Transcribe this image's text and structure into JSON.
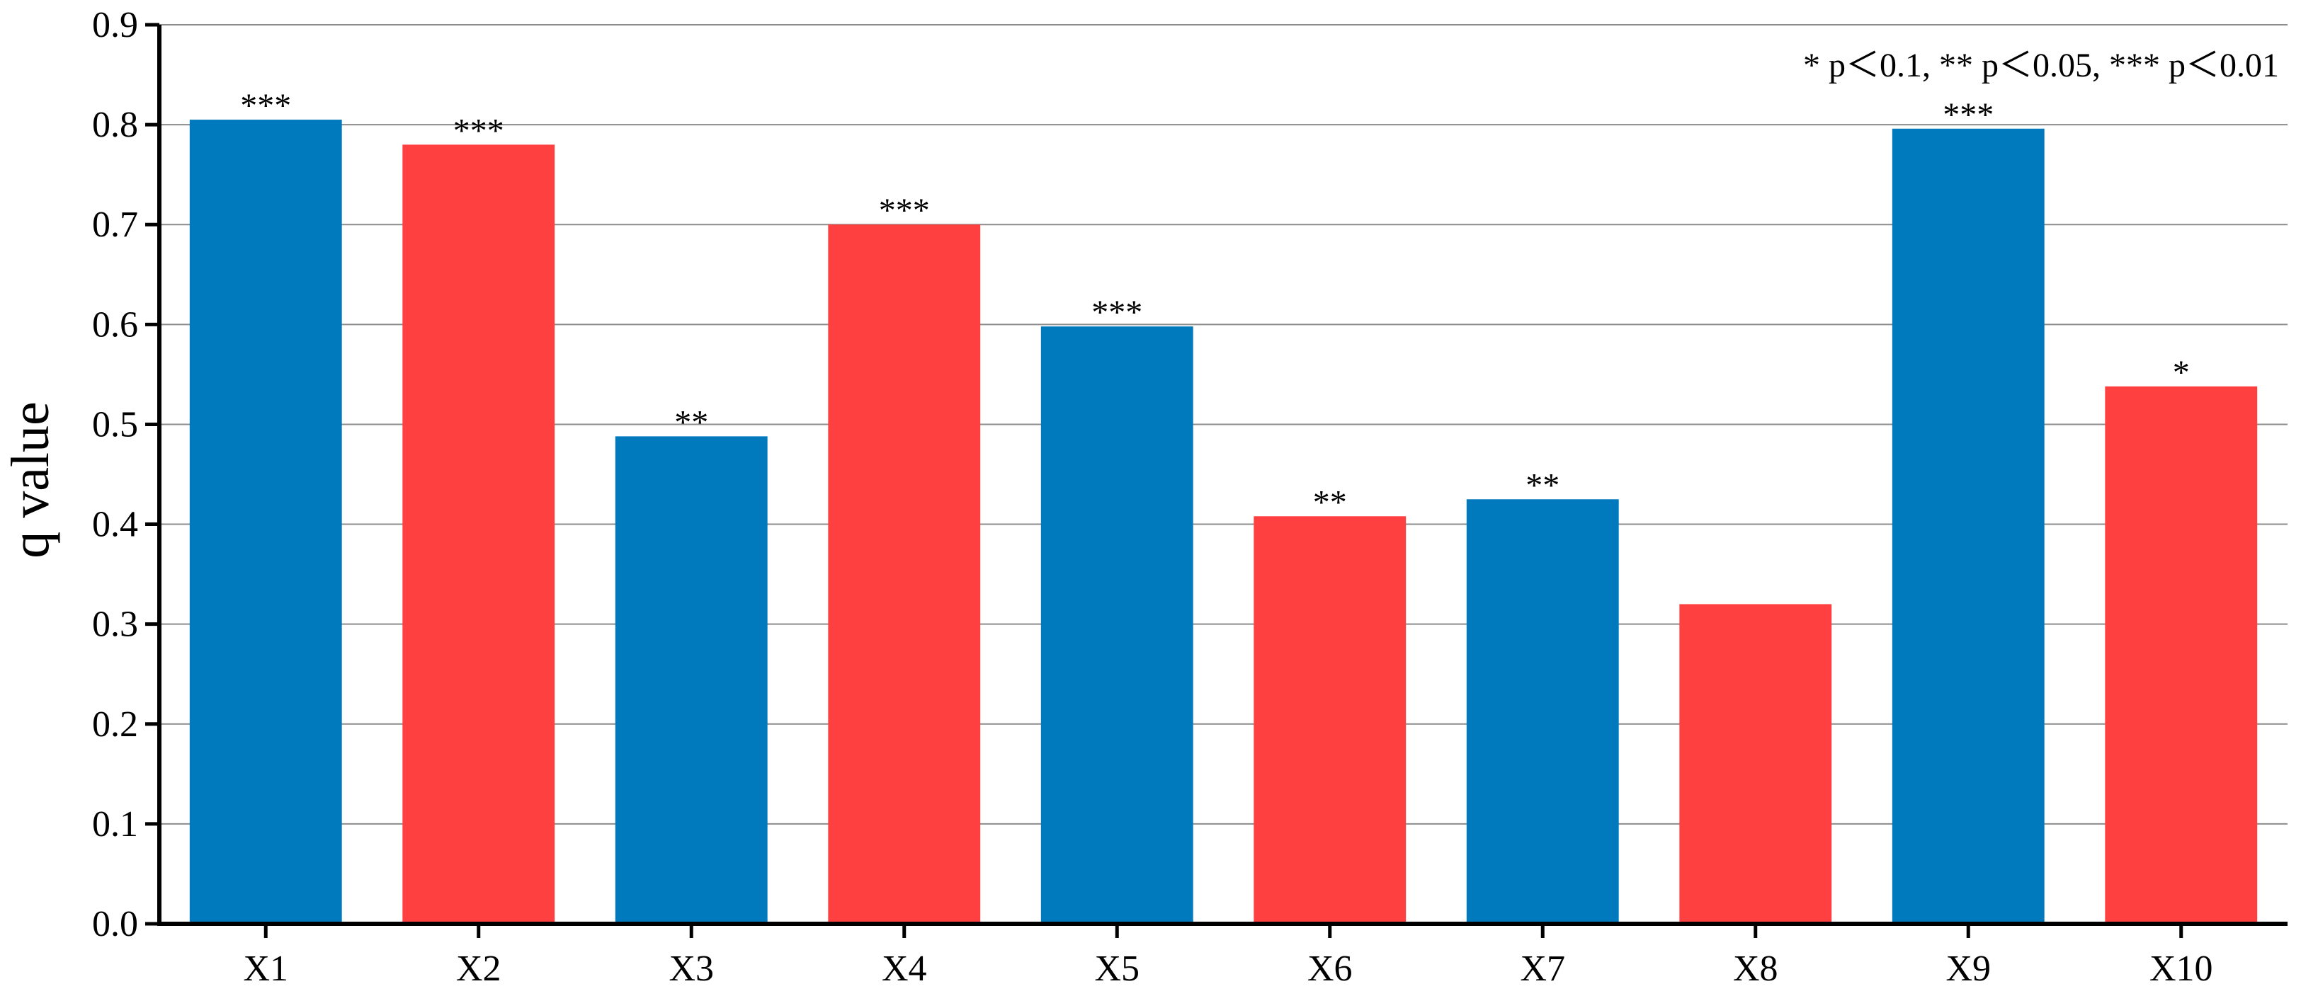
{
  "chart_data": {
    "type": "bar",
    "title": "",
    "xlabel": "",
    "ylabel": "q value",
    "ylim": [
      0,
      0.9
    ],
    "yticks": [
      "0.0",
      "0.1",
      "0.2",
      "0.3",
      "0.4",
      "0.5",
      "0.6",
      "0.7",
      "0.8",
      "0.9"
    ],
    "grid": true,
    "categories": [
      "X1",
      "X2",
      "X3",
      "X4",
      "X5",
      "X6",
      "X7",
      "X8",
      "X9",
      "X10"
    ],
    "values": [
      0.805,
      0.78,
      0.488,
      0.7,
      0.598,
      0.408,
      0.425,
      0.32,
      0.796,
      0.538
    ],
    "significance": [
      "***",
      "***",
      "**",
      "***",
      "***",
      "**",
      "**",
      "",
      "***",
      "*"
    ],
    "bar_colors": [
      "#0079BD",
      "#FF4040",
      "#0079BD",
      "#FF4040",
      "#0079BD",
      "#FF4040",
      "#0079BD",
      "#FF4040",
      "#0079BD",
      "#FF4040"
    ],
    "annotation": "* p＜0.1, ** p＜0.05, *** p＜0.01",
    "annotation_position": "top-right"
  }
}
